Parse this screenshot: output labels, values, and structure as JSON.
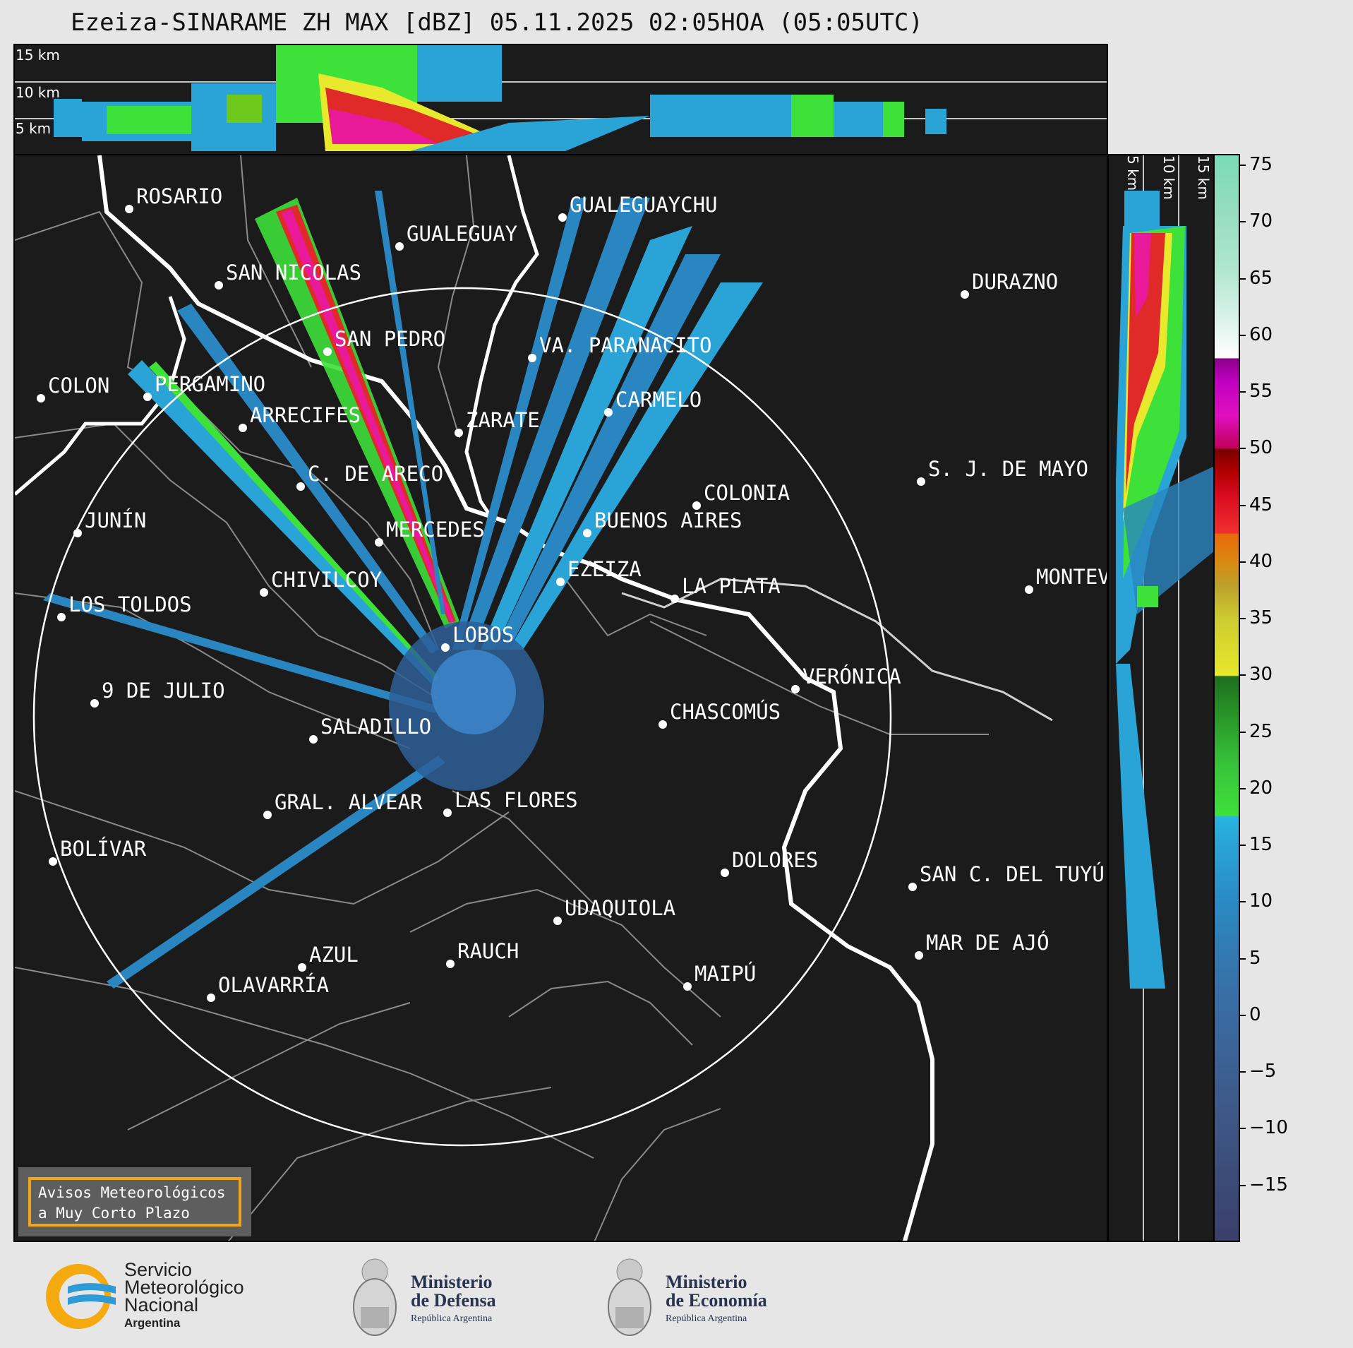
{
  "title": "Ezeiza-SINARAME ZH MAX [dBZ] 05.11.2025 02:05HOA (05:05UTC)",
  "top_panel": {
    "altitudes": [
      "15 km",
      "10 km",
      "5 km"
    ]
  },
  "side_panel": {
    "altitudes": [
      "5 km",
      "10 km",
      "15 km"
    ]
  },
  "colorbar": {
    "unit": "dBZ",
    "ticks": [
      "75",
      "70",
      "65",
      "60",
      "55",
      "50",
      "45",
      "40",
      "35",
      "30",
      "25",
      "20",
      "15",
      "10",
      "5",
      "0",
      "−5",
      "−10",
      "−15"
    ],
    "min": -20,
    "max": 76
  },
  "cities": [
    {
      "name": "ROSARIO"
    },
    {
      "name": "GUALEGUAYCHU"
    },
    {
      "name": "GUALEGUAY"
    },
    {
      "name": "SAN NICOLAS"
    },
    {
      "name": "DURAZNO"
    },
    {
      "name": "SAN PEDRO"
    },
    {
      "name": "VA. PARANACITO"
    },
    {
      "name": "COLON"
    },
    {
      "name": "PERGAMINO"
    },
    {
      "name": "CARMELO"
    },
    {
      "name": "ARRECIFES"
    },
    {
      "name": "ZARATE"
    },
    {
      "name": "S. J. DE MAYO"
    },
    {
      "name": "C. DE ARECO"
    },
    {
      "name": "COLONIA"
    },
    {
      "name": "JUNÍN"
    },
    {
      "name": "BUENOS AIRES"
    },
    {
      "name": "MERCEDES"
    },
    {
      "name": "EZEIZA"
    },
    {
      "name": "MONTEVIDEO"
    },
    {
      "name": "CHIVILCOY"
    },
    {
      "name": "LA PLATA"
    },
    {
      "name": "LOS TOLDOS"
    },
    {
      "name": "LOBOS"
    },
    {
      "name": "VERÓNICA"
    },
    {
      "name": "9 DE JULIO"
    },
    {
      "name": "CHASCOMÚS"
    },
    {
      "name": "SALADILLO"
    },
    {
      "name": "GRAL. ALVEAR"
    },
    {
      "name": "LAS FLORES"
    },
    {
      "name": "BOLÍVAR"
    },
    {
      "name": "DOLORES"
    },
    {
      "name": "SAN C. DEL TUYÚ"
    },
    {
      "name": "UDAQUIOLA"
    },
    {
      "name": "MAR DE AJÓ"
    },
    {
      "name": "AZUL"
    },
    {
      "name": "RAUCH"
    },
    {
      "name": "MAIPÚ"
    },
    {
      "name": "OLAVARRÍA"
    }
  ],
  "aviso": {
    "line1": "Avisos Meteorológicos",
    "line2": "a Muy Corto Plazo"
  },
  "logos": {
    "smn": {
      "line1": "Servicio",
      "line2": "Meteorológico",
      "line3": "Nacional",
      "line4": "Argentina"
    },
    "defensa": {
      "line1": "Ministerio",
      "line2": "de Defensa",
      "line3": "República Argentina"
    },
    "economia": {
      "line1": "Ministerio",
      "line2": "de Economía",
      "line3": "República Argentina"
    }
  }
}
